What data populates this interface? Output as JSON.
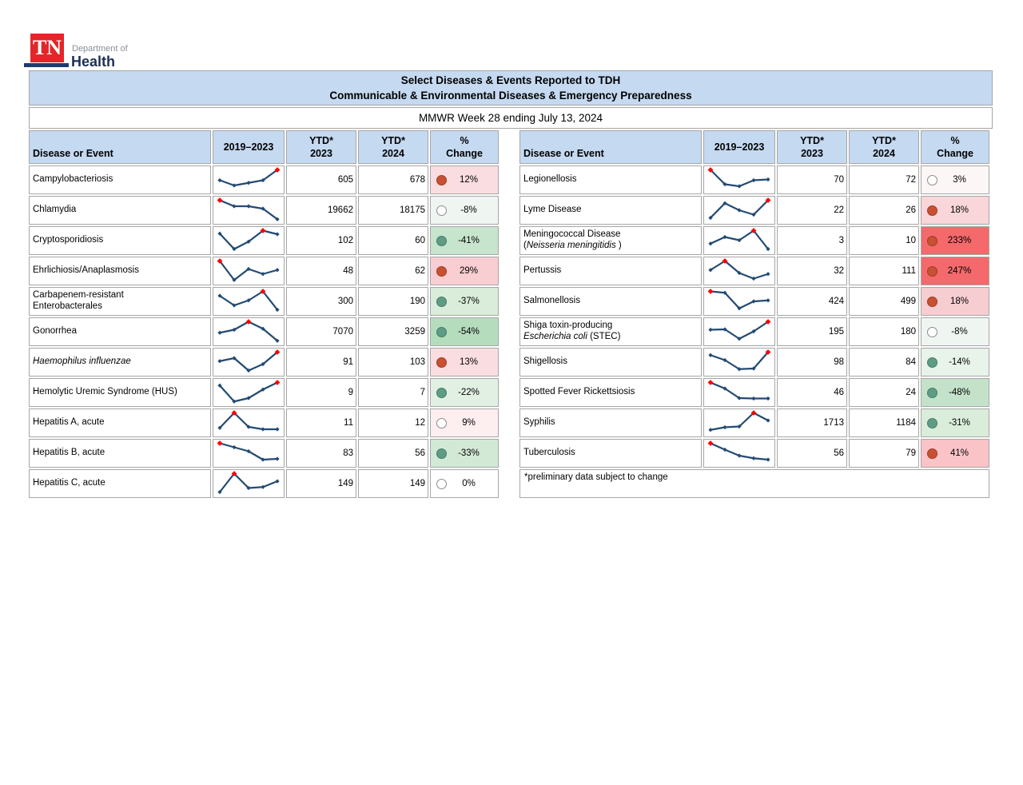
{
  "logo": {
    "tn": "TN",
    "dept": "Department of",
    "health": "Health"
  },
  "header": {
    "title_line1": "Select Diseases & Events Reported to TDH",
    "title_line2": "Communicable & Environmental Diseases & Emergency Preparedness",
    "subtitle": "MMWR Week 28 ending July 13, 2024"
  },
  "columns": [
    {
      "l1": "Disease or Event",
      "l2": ""
    },
    {
      "l1": "2019–2023",
      "l2": ""
    },
    {
      "l1": "YTD*",
      "l2": "2023"
    },
    {
      "l1": "YTD*",
      "l2": "2024"
    },
    {
      "l1": "%",
      "l2": "Change"
    }
  ],
  "colors": {
    "header_blue": "#c5d9f1",
    "border_gray": "#a6a6a6",
    "spark_line": "#234a73",
    "spark_high_marker": "#ff0000",
    "dot_increase": "#c75133",
    "dot_decrease": "#5e9c85",
    "strong_red_bg": "#f4696b"
  },
  "left_table": {
    "rows": [
      {
        "name": [
          {
            "t": "Campylobacteriosis"
          }
        ],
        "spark": {
          "v": [
            0.48,
            0.22,
            0.35,
            0.48,
            1.0
          ],
          "max": 4
        },
        "y23": "605",
        "y24": "678",
        "pct": "12%",
        "dir": "up",
        "bg": "#fadde0"
      },
      {
        "name": [
          {
            "t": "Chlamydia"
          }
        ],
        "spark": {
          "v": [
            1.0,
            0.7,
            0.7,
            0.58,
            0.05
          ],
          "max": 0
        },
        "y23": "19662",
        "y24": "18175",
        "pct": "-8%",
        "dir": "flat",
        "bg": "#eff6f1"
      },
      {
        "name": [
          {
            "t": "Cryptosporidiosis"
          }
        ],
        "spark": {
          "v": [
            0.85,
            0.08,
            0.45,
            1.0,
            0.82
          ],
          "max": 3
        },
        "y23": "102",
        "y24": "60",
        "pct": "-41%",
        "dir": "down",
        "bg": "#c7e4cd"
      },
      {
        "name": [
          {
            "t": "Ehrlichiosis/Anaplasmosis"
          }
        ],
        "spark": {
          "v": [
            1.0,
            0.05,
            0.6,
            0.35,
            0.55
          ],
          "max": 0
        },
        "y23": "48",
        "y24": "62",
        "pct": "29%",
        "dir": "up",
        "bg": "#f8ced2"
      },
      {
        "name": [
          {
            "t": "Carbapenem-resistant"
          },
          {
            "br": true
          },
          {
            "t": "Enterobacterales"
          }
        ],
        "spark": {
          "v": [
            0.78,
            0.3,
            0.55,
            1.0,
            0.08
          ],
          "max": 3
        },
        "y23": "300",
        "y24": "190",
        "pct": "-37%",
        "dir": "down",
        "bg": "#d9edda"
      },
      {
        "name": [
          {
            "t": "Gonorrhea"
          }
        ],
        "spark": {
          "v": [
            0.45,
            0.6,
            1.0,
            0.65,
            0.05
          ],
          "max": 2
        },
        "y23": "7070",
        "y24": "3259",
        "pct": "-54%",
        "dir": "down",
        "bg": "#b5ddbd"
      },
      {
        "name": [
          {
            "t": "Haemophilus influenzae",
            "i": true
          }
        ],
        "spark": {
          "v": [
            0.55,
            0.7,
            0.08,
            0.4,
            1.0
          ],
          "max": 4
        },
        "y23": "91",
        "y24": "103",
        "pct": "13%",
        "dir": "up",
        "bg": "#fadde0"
      },
      {
        "name": [
          {
            "t": "Hemolytic Uremic Syndrome (HUS)"
          }
        ],
        "spark": {
          "v": [
            0.85,
            0.05,
            0.22,
            0.65,
            1.0
          ],
          "max": 4
        },
        "y23": "9",
        "y24": "7",
        "pct": "-22%",
        "dir": "down",
        "bg": "#e2f0e4"
      },
      {
        "name": [
          {
            "t": "Hepatitis A, acute"
          }
        ],
        "spark": {
          "v": [
            0.25,
            1.0,
            0.3,
            0.18,
            0.18
          ],
          "max": 1
        },
        "y23": "11",
        "y24": "12",
        "pct": "9%",
        "dir": "flat",
        "bg": "#fdeef0"
      },
      {
        "name": [
          {
            "t": "Hepatitis B, acute"
          }
        ],
        "spark": {
          "v": [
            1.0,
            0.8,
            0.6,
            0.18,
            0.22
          ],
          "max": 0
        },
        "y23": "83",
        "y24": "56",
        "pct": "-33%",
        "dir": "down",
        "bg": "#d2e9d5"
      },
      {
        "name": [
          {
            "t": "Hepatitis C, acute"
          }
        ],
        "spark": {
          "v": [
            0.08,
            1.0,
            0.28,
            0.33,
            0.62
          ],
          "max": 1
        },
        "y23": "149",
        "y24": "149",
        "pct": "0%",
        "dir": "flat",
        "bg": "#ffffff"
      }
    ]
  },
  "right_table": {
    "rows": [
      {
        "name": [
          {
            "t": "Legionellosis"
          }
        ],
        "spark": {
          "v": [
            1.0,
            0.28,
            0.18,
            0.48,
            0.52
          ],
          "max": 0
        },
        "y23": "70",
        "y24": "72",
        "pct": "3%",
        "dir": "flat",
        "bg": "#fdf6f6"
      },
      {
        "name": [
          {
            "t": "Lyme Disease"
          }
        ],
        "spark": {
          "v": [
            0.12,
            0.85,
            0.5,
            0.28,
            1.0
          ],
          "max": 4
        },
        "y23": "22",
        "y24": "26",
        "pct": "18%",
        "dir": "up",
        "bg": "#f9d6d9"
      },
      {
        "name": [
          {
            "t": "Meningococcal Disease"
          },
          {
            "br": true
          },
          {
            "t": "("
          },
          {
            "t": "Neisseria meningitidis",
            "i": true
          },
          {
            "t": " )"
          }
        ],
        "spark": {
          "v": [
            0.35,
            0.68,
            0.52,
            1.0,
            0.08
          ],
          "max": 3
        },
        "y23": "3",
        "y24": "10",
        "pct": "233%",
        "dir": "up",
        "bg": "#f4696b"
      },
      {
        "name": [
          {
            "t": "Pertussis"
          }
        ],
        "spark": {
          "v": [
            0.55,
            1.0,
            0.4,
            0.12,
            0.35
          ],
          "max": 1
        },
        "y23": "32",
        "y24": "111",
        "pct": "247%",
        "dir": "up",
        "bg": "#f4696b"
      },
      {
        "name": [
          {
            "t": "Salmonellosis"
          }
        ],
        "spark": {
          "v": [
            1.0,
            0.93,
            0.15,
            0.5,
            0.55
          ],
          "max": 0
        },
        "y23": "424",
        "y24": "499",
        "pct": "18%",
        "dir": "up",
        "bg": "#f6cdd1"
      },
      {
        "name": [
          {
            "t": "Shiga toxin-producing"
          },
          {
            "br": true
          },
          {
            "t": "Escherichia coli",
            "i": true
          },
          {
            "t": " (STEC)"
          }
        ],
        "spark": {
          "v": [
            0.6,
            0.62,
            0.15,
            0.52,
            1.0
          ],
          "max": 4
        },
        "y23": "195",
        "y24": "180",
        "pct": "-8%",
        "dir": "flat",
        "bg": "#eff6f1"
      },
      {
        "name": [
          {
            "t": "Shigellosis"
          }
        ],
        "spark": {
          "v": [
            0.85,
            0.6,
            0.15,
            0.18,
            1.0
          ],
          "max": 4
        },
        "y23": "98",
        "y24": "84",
        "pct": "-14%",
        "dir": "down",
        "bg": "#e8f3ea"
      },
      {
        "name": [
          {
            "t": "Spotted Fever Rickettsiosis"
          }
        ],
        "spark": {
          "v": [
            1.0,
            0.7,
            0.22,
            0.2,
            0.2
          ],
          "max": 0
        },
        "y23": "46",
        "y24": "24",
        "pct": "-48%",
        "dir": "down",
        "bg": "#c4e2ca"
      },
      {
        "name": [
          {
            "t": "Syphilis"
          }
        ],
        "spark": {
          "v": [
            0.15,
            0.28,
            0.32,
            1.0,
            0.62
          ],
          "max": 3
        },
        "y23": "1713",
        "y24": "1184",
        "pct": "-31%",
        "dir": "down",
        "bg": "#d9edda"
      },
      {
        "name": [
          {
            "t": "Tuberculosis"
          }
        ],
        "spark": {
          "v": [
            1.0,
            0.68,
            0.38,
            0.25,
            0.18
          ],
          "max": 0
        },
        "y23": "56",
        "y24": "79",
        "pct": "41%",
        "dir": "up",
        "bg": "#f9c3c7"
      }
    ],
    "footnote": "*preliminary data subject to change"
  }
}
